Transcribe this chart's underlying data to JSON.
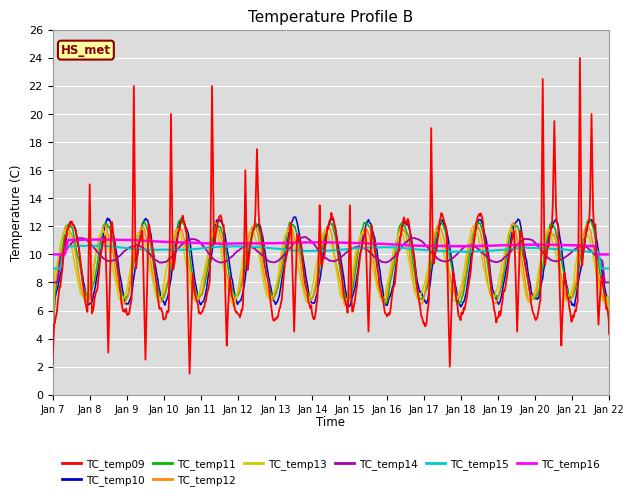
{
  "title": "Temperature Profile B",
  "xlabel": "Time",
  "ylabel": "Temperature (C)",
  "ylim": [
    0,
    26
  ],
  "yticks": [
    0,
    2,
    4,
    6,
    8,
    10,
    12,
    14,
    16,
    18,
    20,
    22,
    24,
    26
  ],
  "xtick_labels": [
    "Jan 7",
    "Jan 8",
    "Jan 9",
    "Jan 10",
    "Jan 11",
    "Jan 12",
    "Jan 13",
    "Jan 14",
    "Jan 15",
    "Jan 16",
    "Jan 17",
    "Jan 18",
    "Jan 19",
    "Jan 20",
    "Jan 21",
    "Jan 22"
  ],
  "annotation_text": "HS_met",
  "annotation_color": "#8B0000",
  "annotation_bg": "#FFFFA0",
  "bg_color": "#DCDCDC",
  "series_colors": {
    "TC_temp09": "#FF0000",
    "TC_temp10": "#0000CC",
    "TC_temp11": "#00BB00",
    "TC_temp12": "#FF8800",
    "TC_temp13": "#CCCC00",
    "TC_temp14": "#AA00AA",
    "TC_temp15": "#00CCCC",
    "TC_temp16": "#FF00FF"
  },
  "legend_order": [
    "TC_temp09",
    "TC_temp10",
    "TC_temp11",
    "TC_temp12",
    "TC_temp13",
    "TC_temp14",
    "TC_temp15",
    "TC_temp16"
  ]
}
